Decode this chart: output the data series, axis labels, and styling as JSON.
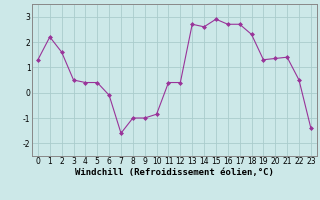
{
  "x": [
    0,
    1,
    2,
    3,
    4,
    5,
    6,
    7,
    8,
    9,
    10,
    11,
    12,
    13,
    14,
    15,
    16,
    17,
    18,
    19,
    20,
    21,
    22,
    23
  ],
  "y": [
    1.3,
    2.2,
    1.6,
    0.5,
    0.4,
    0.4,
    -0.1,
    -1.6,
    -1.0,
    -1.0,
    -0.85,
    0.4,
    0.4,
    2.7,
    2.6,
    2.9,
    2.7,
    2.7,
    2.3,
    1.3,
    1.35,
    1.4,
    0.5,
    -1.4
  ],
  "line_color": "#993399",
  "marker": "D",
  "marker_size": 2.0,
  "bg_color": "#cce8e8",
  "grid_color": "#aacccc",
  "xlabel": "Windchill (Refroidissement éolien,°C)",
  "xlim": [
    -0.5,
    23.5
  ],
  "ylim": [
    -2.5,
    3.5
  ],
  "yticks": [
    -2,
    -1,
    0,
    1,
    2,
    3
  ],
  "xticks": [
    0,
    1,
    2,
    3,
    4,
    5,
    6,
    7,
    8,
    9,
    10,
    11,
    12,
    13,
    14,
    15,
    16,
    17,
    18,
    19,
    20,
    21,
    22,
    23
  ],
  "tick_fontsize": 5.5,
  "xlabel_fontsize": 6.5
}
